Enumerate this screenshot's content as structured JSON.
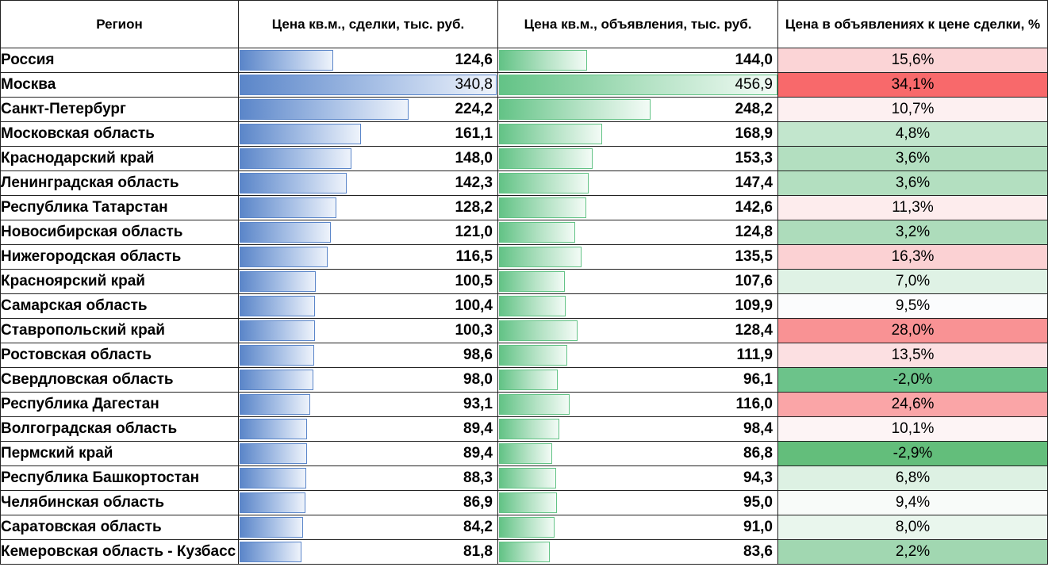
{
  "headers": {
    "region": "Регион",
    "deal_price": "Цена кв.м., сделки, тыс. руб.",
    "ad_price": "Цена кв.м., объявления, тыс. руб.",
    "ratio": "Цена в объявлениях к цене сделки, %"
  },
  "scale": {
    "deal_max": 340.8,
    "ad_max": 456.9
  },
  "rows": [
    {
      "region": "Россия",
      "deal": "124,6",
      "deal_value": 124.6,
      "ad": "144,0",
      "ad_value": 144.0,
      "ratio": "15,6%",
      "ratio_color": "#fbd4d6"
    },
    {
      "region": "Москва",
      "deal": "340,8",
      "deal_value": 340.8,
      "ad": "456,9",
      "ad_value": 456.9,
      "ratio": "34,1%",
      "ratio_color": "#f8696b",
      "values_bold": false
    },
    {
      "region": "Санкт-Петербург",
      "deal": "224,2",
      "deal_value": 224.2,
      "ad": "248,2",
      "ad_value": 248.2,
      "ratio": "10,7%",
      "ratio_color": "#fdf0f1"
    },
    {
      "region": "Московская область",
      "deal": "161,1",
      "deal_value": 161.1,
      "ad": "168,9",
      "ad_value": 168.9,
      "ratio": "4,8%",
      "ratio_color": "#c2e6cd"
    },
    {
      "region": "Краснодарский край",
      "deal": "148,0",
      "deal_value": 148.0,
      "ad": "153,3",
      "ad_value": 153.3,
      "ratio": "3,6%",
      "ratio_color": "#b3dfc0"
    },
    {
      "region": "Ленинградская область",
      "deal": "142,3",
      "deal_value": 142.3,
      "ad": "147,4",
      "ad_value": 147.4,
      "ratio": "3,6%",
      "ratio_color": "#b3dfc0"
    },
    {
      "region": "Республика Татарстан",
      "deal": "128,2",
      "deal_value": 128.2,
      "ad": "142,6",
      "ad_value": 142.6,
      "ratio": "11,3%",
      "ratio_color": "#fdeced"
    },
    {
      "region": "Новосибирская область",
      "deal": "121,0",
      "deal_value": 121.0,
      "ad": "124,8",
      "ad_value": 124.8,
      "ratio": "3,2%",
      "ratio_color": "#addcbb"
    },
    {
      "region": "Нижегородская область",
      "deal": "116,5",
      "deal_value": 116.5,
      "ad": "135,5",
      "ad_value": 135.5,
      "ratio": "16,3%",
      "ratio_color": "#fbd1d3"
    },
    {
      "region": "Красноярский край",
      "deal": "100,5",
      "deal_value": 100.5,
      "ad": "107,6",
      "ad_value": 107.6,
      "ratio": "7,0%",
      "ratio_color": "#dff2e5"
    },
    {
      "region": "Самарская область",
      "deal": "100,4",
      "deal_value": 100.4,
      "ad": "109,9",
      "ad_value": 109.9,
      "ratio": "9,5%",
      "ratio_color": "#fbfcfd"
    },
    {
      "region": "Ставропольский край",
      "deal": "100,3",
      "deal_value": 100.3,
      "ad": "128,4",
      "ad_value": 128.4,
      "ratio": "28,0%",
      "ratio_color": "#f99294"
    },
    {
      "region": "Ростовская область",
      "deal": "98,6",
      "deal_value": 98.6,
      "ad": "111,9",
      "ad_value": 111.9,
      "ratio": "13,5%",
      "ratio_color": "#fce0e2"
    },
    {
      "region": "Свердловская область",
      "deal": "98,0",
      "deal_value": 98.0,
      "ad": "96,1",
      "ad_value": 96.1,
      "ratio": "-2,0%",
      "ratio_color": "#6cc38a"
    },
    {
      "region": "Республика Дагестан",
      "deal": "93,1",
      "deal_value": 93.1,
      "ad": "116,0",
      "ad_value": 116.0,
      "ratio": "24,6%",
      "ratio_color": "#faa5a7"
    },
    {
      "region": "Волгоградская область",
      "deal": "89,4",
      "deal_value": 89.4,
      "ad": "98,4",
      "ad_value": 98.4,
      "ratio": "10,1%",
      "ratio_color": "#fdf4f5"
    },
    {
      "region": "Пермский край",
      "deal": "89,4",
      "deal_value": 89.4,
      "ad": "86,8",
      "ad_value": 86.8,
      "ratio": "-2,9%",
      "ratio_color": "#63be7b"
    },
    {
      "region": "Республика Башкортостан",
      "deal": "88,3",
      "deal_value": 88.3,
      "ad": "94,3",
      "ad_value": 94.3,
      "ratio": "6,8%",
      "ratio_color": "#ddf1e3"
    },
    {
      "region": "Челябинская область",
      "deal": "86,9",
      "deal_value": 86.9,
      "ad": "95,0",
      "ad_value": 95.0,
      "ratio": "9,4%",
      "ratio_color": "#f8fbf9"
    },
    {
      "region": "Саратовская область",
      "deal": "84,2",
      "deal_value": 84.2,
      "ad": "91,0",
      "ad_value": 91.0,
      "ratio": "8,0%",
      "ratio_color": "#e9f6ed"
    },
    {
      "region": "Кемеровская область - Кузбасс",
      "deal": "81,8",
      "deal_value": 81.8,
      "ad": "83,6",
      "ad_value": 83.6,
      "ratio": "2,2%",
      "ratio_color": "#a1d7b1"
    }
  ]
}
